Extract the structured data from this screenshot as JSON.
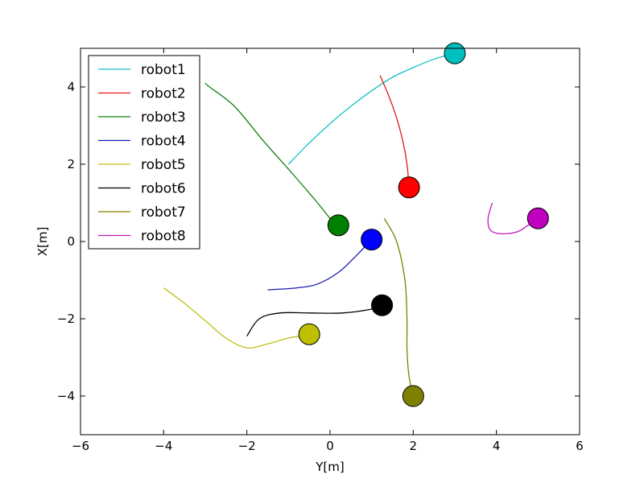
{
  "chart_data": {
    "type": "line",
    "title": "",
    "xlabel": "Y[m]",
    "ylabel": "X[m]",
    "xlim": [
      -6,
      6
    ],
    "ylim": [
      -5,
      5
    ],
    "xticks": [
      -6,
      -4,
      -2,
      0,
      2,
      4,
      6
    ],
    "yticks": [
      -4,
      -2,
      0,
      2,
      4
    ],
    "xtick_labels": [
      "−6",
      "−4",
      "−2",
      "0",
      "2",
      "4",
      "6"
    ],
    "ytick_labels": [
      "−4",
      "−2",
      "0",
      "2",
      "4"
    ],
    "grid": false,
    "legend_position": "top-left",
    "series": [
      {
        "name": "robot1",
        "color": "#17BFBF",
        "marker_color": "#00BFBF",
        "x": [
          -1.0,
          -0.5,
          0.0,
          0.5,
          1.0,
          1.5,
          2.0,
          2.5,
          3.0
        ],
        "y": [
          2.0,
          2.55,
          3.05,
          3.5,
          3.9,
          4.25,
          4.5,
          4.72,
          4.87
        ]
      },
      {
        "name": "robot2",
        "color": "#E31A1A",
        "marker_color": "#FF0000",
        "x": [
          1.2,
          1.4,
          1.6,
          1.75,
          1.85,
          1.9
        ],
        "y": [
          4.3,
          3.8,
          3.2,
          2.6,
          2.0,
          1.4
        ]
      },
      {
        "name": "robot3",
        "color": "#138013",
        "marker_color": "#008000",
        "x": [
          -3.0,
          -2.9,
          -2.3,
          -1.6,
          -0.9,
          -0.3,
          0.0,
          0.2
        ],
        "y": [
          4.1,
          4.0,
          3.5,
          2.6,
          1.75,
          1.0,
          0.6,
          0.42
        ]
      },
      {
        "name": "robot4",
        "color": "#1A1AB3",
        "marker_color": "#0000FF",
        "x": [
          -1.5,
          -0.8,
          -0.3,
          0.2,
          0.6,
          1.0
        ],
        "y": [
          -1.25,
          -1.2,
          -1.1,
          -0.8,
          -0.4,
          0.05
        ]
      },
      {
        "name": "robot5",
        "color": "#BFBF1A",
        "marker_color": "#BFBF00",
        "x": [
          -4.0,
          -3.5,
          -3.0,
          -2.5,
          -2.0,
          -1.5,
          -1.0,
          -0.5
        ],
        "y": [
          -1.2,
          -1.6,
          -2.05,
          -2.5,
          -2.75,
          -2.65,
          -2.5,
          -2.4
        ]
      },
      {
        "name": "robot6",
        "color": "#000000",
        "marker_color": "#000000",
        "x": [
          -2.0,
          -1.7,
          -1.2,
          -0.5,
          0.3,
          1.0,
          1.25
        ],
        "y": [
          -2.45,
          -2.0,
          -1.85,
          -1.85,
          -1.85,
          -1.75,
          -1.65
        ]
      },
      {
        "name": "robot7",
        "color": "#808000",
        "marker_color": "#808000",
        "x": [
          1.3,
          1.6,
          1.8,
          1.85,
          1.85,
          1.9,
          2.0
        ],
        "y": [
          0.6,
          0.0,
          -1.0,
          -2.0,
          -2.8,
          -3.5,
          -4.0
        ]
      },
      {
        "name": "robot8",
        "color": "#BF1ABF",
        "marker_color": "#BF00BF",
        "x": [
          3.9,
          3.8,
          3.85,
          4.1,
          4.5,
          4.8,
          5.0
        ],
        "y": [
          1.0,
          0.6,
          0.3,
          0.2,
          0.25,
          0.45,
          0.6
        ]
      }
    ]
  }
}
